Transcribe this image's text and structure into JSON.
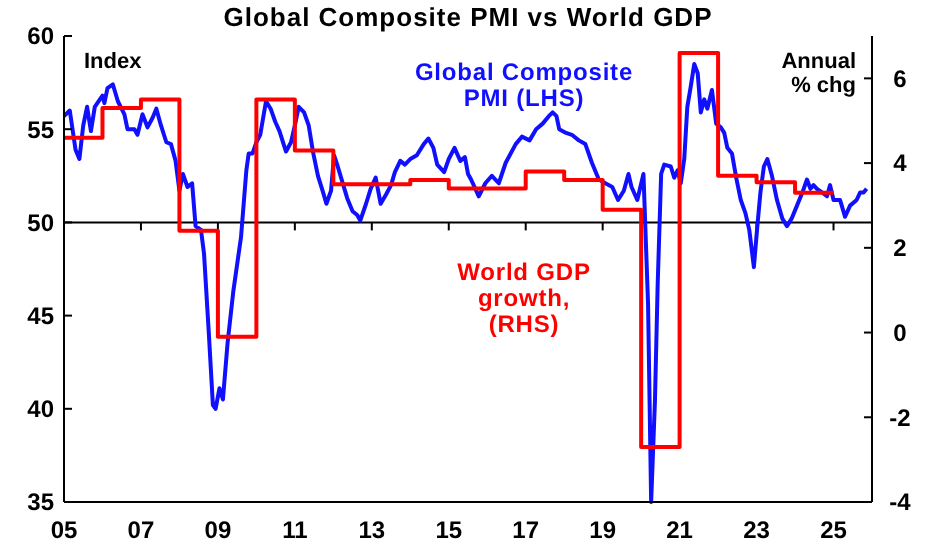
{
  "chart_data": {
    "type": "line",
    "title": "Global Composite PMI vs World GDP",
    "xlim": [
      2005,
      2026
    ],
    "xticks": [
      {
        "value": 2005,
        "label": "05"
      },
      {
        "value": 2007,
        "label": "07"
      },
      {
        "value": 2009,
        "label": "09"
      },
      {
        "value": 2011,
        "label": "11"
      },
      {
        "value": 2013,
        "label": "13"
      },
      {
        "value": 2015,
        "label": "15"
      },
      {
        "value": 2017,
        "label": "17"
      },
      {
        "value": 2019,
        "label": "19"
      },
      {
        "value": 2021,
        "label": "21"
      },
      {
        "value": 2023,
        "label": "23"
      },
      {
        "value": 2025,
        "label": "25"
      }
    ],
    "ylim": [
      35,
      60
    ],
    "yticks": [
      35,
      40,
      45,
      50,
      55,
      60
    ],
    "y2lim": [
      -4,
      7
    ],
    "y2ticks": [
      -4,
      -2,
      0,
      2,
      4,
      6
    ],
    "legend": false,
    "grid": false,
    "ref_lines": [
      {
        "axis": "y",
        "value": 50,
        "color": "#000000"
      }
    ],
    "annotations": [
      "Index",
      "Annual % chg"
    ],
    "series": [
      {
        "name": "Global Composite PMI (LHS)",
        "color": "#1010ff",
        "x": [
          2005.0,
          2005.15,
          2005.3,
          2005.4,
          2005.5,
          2005.6,
          2005.7,
          2005.8,
          2006.0,
          2006.05,
          2006.13,
          2006.27,
          2006.4,
          2006.57,
          2006.65,
          2006.83,
          2006.91,
          2007.04,
          2007.17,
          2007.3,
          2007.4,
          2007.52,
          2007.66,
          2007.78,
          2007.9,
          2008.0,
          2008.09,
          2008.21,
          2008.33,
          2008.42,
          2008.56,
          2008.64,
          2008.76,
          2008.87,
          2008.94,
          2009.04,
          2009.13,
          2009.25,
          2009.4,
          2009.6,
          2009.74,
          2009.8,
          2009.9,
          2010.0,
          2010.1,
          2010.25,
          2010.37,
          2010.49,
          2010.6,
          2010.77,
          2010.9,
          2011.0,
          2011.1,
          2011.24,
          2011.36,
          2011.47,
          2011.6,
          2011.72,
          2011.82,
          2011.94,
          2012.02,
          2012.1,
          2012.23,
          2012.36,
          2012.5,
          2012.62,
          2012.7,
          2012.85,
          2012.97,
          2013.1,
          2013.23,
          2013.37,
          2013.5,
          2013.6,
          2013.74,
          2013.86,
          2014.0,
          2014.17,
          2014.35,
          2014.47,
          2014.6,
          2014.7,
          2014.88,
          2015.0,
          2015.15,
          2015.3,
          2015.42,
          2015.5,
          2015.58,
          2015.78,
          2015.95,
          2016.12,
          2016.3,
          2016.48,
          2016.74,
          2016.9,
          2017.1,
          2017.27,
          2017.44,
          2017.6,
          2017.7,
          2017.8,
          2017.87,
          2018.05,
          2018.2,
          2018.38,
          2018.55,
          2018.72,
          2018.9,
          2019.07,
          2019.25,
          2019.4,
          2019.55,
          2019.67,
          2019.75,
          2019.9,
          2020.06,
          2020.18,
          2020.26,
          2020.36,
          2020.43,
          2020.52,
          2020.6,
          2020.77,
          2020.86,
          2020.95,
          2021.03,
          2021.12,
          2021.2,
          2021.29,
          2021.38,
          2021.47,
          2021.55,
          2021.64,
          2021.72,
          2021.84,
          2021.95,
          2022.07,
          2022.16,
          2022.24,
          2022.36,
          2022.47,
          2022.59,
          2022.71,
          2022.81,
          2022.93,
          2023.02,
          2023.1,
          2023.19,
          2023.28,
          2023.4,
          2023.53,
          2023.67,
          2023.79,
          2023.91,
          2024.05,
          2024.19,
          2024.31,
          2024.4,
          2024.48,
          2024.57,
          2024.71,
          2024.83,
          2024.91,
          2025.0,
          2025.17,
          2025.3,
          2025.43,
          2025.6,
          2025.69,
          2025.78,
          2025.86
        ],
        "values": [
          55.7,
          56.0,
          53.9,
          53.4,
          55.2,
          56.2,
          54.9,
          56.2,
          56.8,
          56.4,
          57.2,
          57.4,
          56.5,
          55.8,
          55.0,
          55.0,
          54.7,
          55.8,
          55.1,
          55.6,
          56.1,
          55.2,
          54.3,
          54.2,
          53.3,
          51.7,
          52.6,
          51.9,
          52.1,
          49.8,
          49.6,
          48.3,
          44.2,
          40.2,
          40.0,
          41.1,
          40.5,
          43.5,
          46.3,
          49.2,
          52.8,
          53.7,
          53.7,
          54.3,
          54.7,
          56.5,
          56.1,
          55.4,
          54.9,
          53.8,
          54.3,
          55.2,
          56.2,
          55.9,
          55.2,
          53.8,
          52.5,
          51.7,
          51.0,
          51.7,
          53.6,
          53.1,
          52.2,
          51.3,
          50.6,
          50.4,
          50.1,
          51.0,
          51.8,
          52.4,
          51.0,
          51.5,
          52.0,
          52.7,
          53.3,
          53.1,
          53.4,
          53.6,
          54.2,
          54.5,
          54.0,
          53.1,
          52.7,
          53.4,
          54.0,
          53.3,
          53.5,
          52.6,
          52.3,
          51.4,
          52.1,
          52.5,
          52.1,
          53.2,
          54.2,
          54.6,
          54.4,
          55.0,
          55.3,
          55.7,
          55.9,
          55.7,
          55.0,
          54.8,
          54.7,
          54.4,
          54.2,
          53.2,
          52.3,
          52.1,
          51.9,
          51.2,
          51.7,
          52.6,
          51.9,
          51.2,
          52.6,
          45.6,
          35.0,
          40.5,
          46.7,
          52.6,
          53.1,
          53.0,
          52.4,
          52.8,
          52.1,
          53.4,
          56.2,
          57.3,
          58.5,
          58.0,
          55.9,
          56.6,
          56.1,
          57.1,
          55.3,
          55.1,
          54.8,
          54.0,
          53.7,
          52.4,
          51.2,
          50.5,
          49.6,
          47.6,
          49.8,
          51.6,
          53.0,
          53.4,
          52.5,
          51.2,
          50.2,
          49.8,
          50.2,
          50.9,
          51.6,
          52.3,
          51.8,
          52.0,
          51.8,
          51.6,
          51.4,
          52.0,
          51.2,
          51.2,
          50.3,
          50.9,
          51.2,
          51.6,
          51.6,
          51.8
        ]
      },
      {
        "name": "World GDP growth, (RHS)",
        "type": "step",
        "axis": "y2",
        "color": "#ff0000",
        "x": [
          2005,
          2006,
          2007,
          2008,
          2009,
          2010,
          2011,
          2012,
          2013,
          2014,
          2015,
          2016,
          2017,
          2018,
          2019,
          2020,
          2021,
          2022,
          2023,
          2024,
          2025
        ],
        "values": [
          4.6,
          5.3,
          5.5,
          2.4,
          -0.1,
          5.5,
          4.3,
          3.5,
          3.5,
          3.6,
          3.4,
          3.4,
          3.8,
          3.6,
          2.9,
          -2.7,
          6.6,
          3.7,
          3.55,
          3.3,
          3.3
        ]
      }
    ]
  }
}
